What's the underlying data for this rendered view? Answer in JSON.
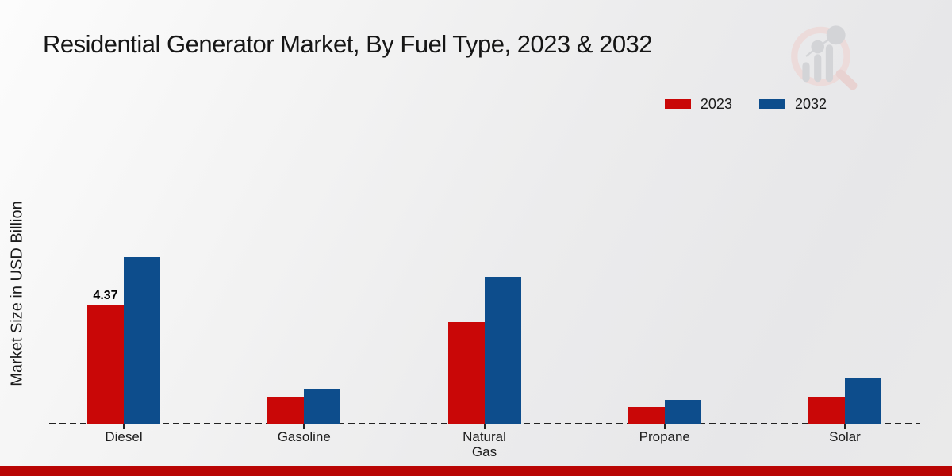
{
  "page": {
    "footer_color": "#b90504"
  },
  "chart_data": {
    "type": "bar",
    "title": "Residential Generator Market, By Fuel Type, 2023 & 2032",
    "ylabel": "Market Size in USD Billion",
    "xlabel": "",
    "categories": [
      "Diesel",
      "Gasoline",
      "Natural Gas",
      "Propane",
      "Solar"
    ],
    "series": [
      {
        "name": "2023",
        "color": "#c90707",
        "values": [
          4.37,
          0.97,
          3.75,
          0.62,
          0.97
        ],
        "value_labels": [
          "4.37",
          "",
          "",
          "",
          ""
        ]
      },
      {
        "name": "2032",
        "color": "#0d4d8c",
        "values": [
          6.16,
          1.29,
          5.43,
          0.88,
          1.67
        ],
        "value_labels": [
          "",
          "",
          "",
          "",
          ""
        ]
      }
    ],
    "ylim": [
      0,
      7
    ],
    "grid": false,
    "baseline_style": "dashed",
    "legend_position": "top-right"
  },
  "legend": {
    "items": [
      {
        "label": "2023",
        "color": "#c90707"
      },
      {
        "label": "2032",
        "color": "#0d4d8c"
      }
    ]
  },
  "logo": {
    "name": "magnifier-bar-chart-watermark",
    "ring_color": "#ecdbda",
    "bar_color": "#d3d4d7",
    "handle_color": "#e8d2d1"
  }
}
